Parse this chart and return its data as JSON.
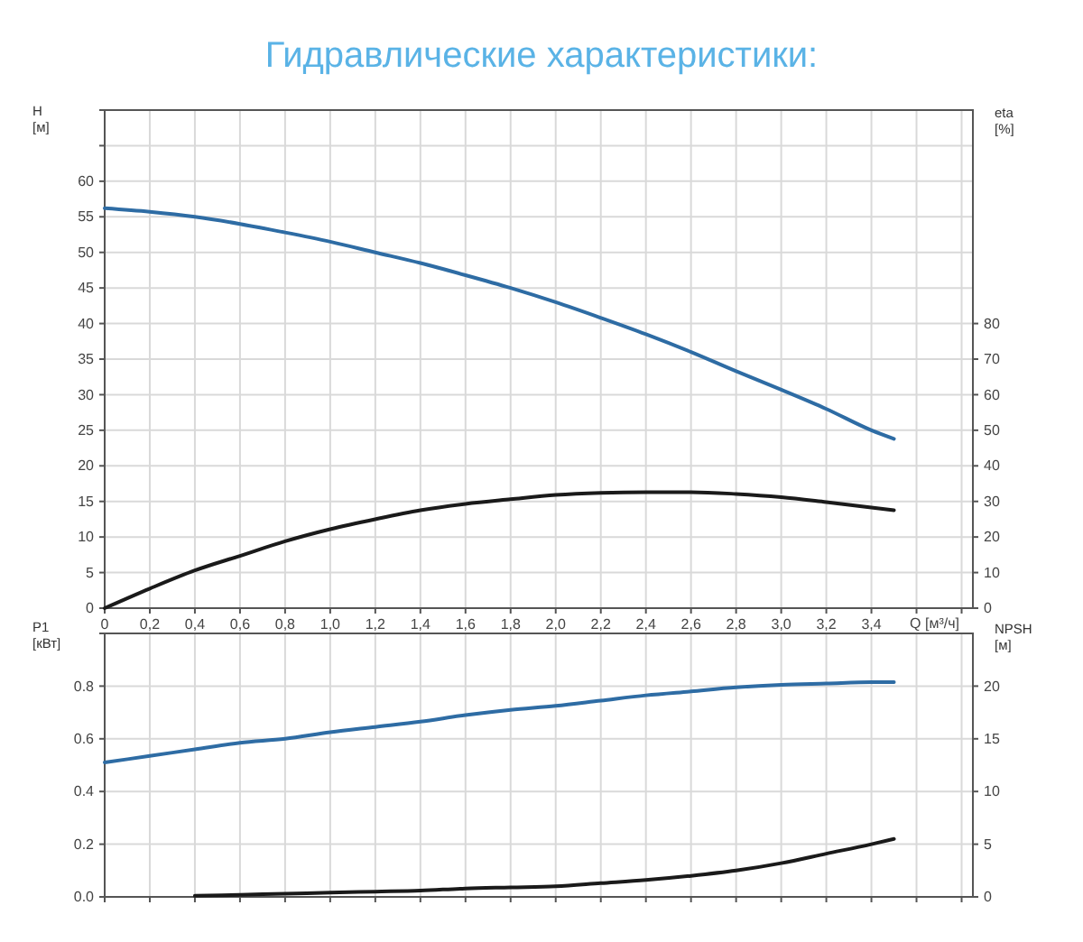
{
  "chart_data": [
    {
      "type": "line",
      "title": "Гидравлические характеристики:",
      "xlabel": "Q [м³/ч]",
      "ylabel": "H [м]",
      "y2label": "eta [%]",
      "grid": true,
      "xlim": [
        0,
        3.85
      ],
      "xticks": [
        0,
        {
          "value": 0.2,
          "label": "0,2"
        },
        {
          "value": 0.4,
          "label": "0,4"
        },
        {
          "value": 0.6,
          "label": "0,6"
        },
        {
          "value": 0.8,
          "label": "0,8"
        },
        {
          "value": 1.0,
          "label": "1,0"
        },
        {
          "value": 1.2,
          "label": "1,2"
        },
        {
          "value": 1.4,
          "label": "1,4"
        },
        {
          "value": 1.6,
          "label": "1,6"
        },
        {
          "value": 1.8,
          "label": "1,8"
        },
        {
          "value": 2.0,
          "label": "2,0"
        },
        {
          "value": 2.2,
          "label": "2,2"
        },
        {
          "value": 2.4,
          "label": "2,4"
        },
        {
          "value": 2.6,
          "label": "2,6"
        },
        {
          "value": 2.8,
          "label": "2,8"
        },
        {
          "value": 3.0,
          "label": "3,0"
        },
        {
          "value": 3.2,
          "label": "3,2"
        },
        {
          "value": 3.4,
          "label": "3,4"
        },
        {
          "value": 3.6,
          "label": null
        },
        {
          "value": 3.8,
          "label": null
        }
      ],
      "ylim": [
        0,
        70
      ],
      "yticks": [
        0,
        5,
        10,
        15,
        20,
        25,
        30,
        35,
        40,
        45,
        50,
        55,
        60,
        {
          "value": 65,
          "label": null
        },
        {
          "value": 70,
          "label": null
        }
      ],
      "y2lim": [
        0,
        140
      ],
      "y2ticks": [
        0,
        10,
        20,
        30,
        40,
        50,
        60,
        70,
        80
      ],
      "series": [
        {
          "color": "#2e6ca4",
          "x": [
            0,
            0.2,
            0.4,
            0.6,
            0.8,
            1.0,
            1.2,
            1.4,
            1.6,
            1.8,
            2.0,
            2.2,
            2.4,
            2.6,
            2.8,
            3.0,
            3.2,
            3.4,
            3.5
          ],
          "values": [
            56.2,
            55.7,
            55,
            54,
            52.8,
            51.5,
            50,
            48.5,
            46.8,
            45,
            43,
            40.8,
            38.5,
            36,
            33.3,
            30.7,
            28,
            25,
            23.8
          ]
        },
        {
          "color": "#1a1a1a",
          "axis": "y2",
          "x": [
            0,
            0.2,
            0.4,
            0.6,
            0.8,
            1.0,
            1.2,
            1.4,
            1.6,
            1.8,
            2.0,
            2.2,
            2.4,
            2.6,
            2.8,
            3.0,
            3.2,
            3.4,
            3.5
          ],
          "values": [
            0,
            5.5,
            10.6,
            14.7,
            18.8,
            22.2,
            25,
            27.5,
            29.3,
            30.6,
            31.8,
            32.4,
            32.6,
            32.6,
            32.1,
            31.2,
            29.8,
            28.3,
            27.5
          ]
        }
      ]
    },
    {
      "type": "line",
      "ylabel": "P1 [кВт]",
      "y2label": "NPSH [м]",
      "grid": true,
      "tick_labels": "y",
      "xlim": [
        0,
        3.85
      ],
      "xticks": [
        0,
        0.2,
        0.4,
        0.6,
        0.8,
        1.0,
        1.2,
        1.4,
        1.6,
        1.8,
        2.0,
        2.2,
        2.4,
        2.6,
        2.8,
        3.0,
        3.2,
        3.4,
        3.6,
        3.8
      ],
      "ylim": [
        0,
        1.0
      ],
      "yticks": [
        {
          "value": 0,
          "label": "0.0"
        },
        0.2,
        0.4,
        0.6,
        0.8,
        {
          "value": 1.0,
          "label": null
        }
      ],
      "y2lim": [
        0,
        25
      ],
      "y2ticks": [
        0,
        5,
        10,
        15,
        20
      ],
      "series": [
        {
          "color": "#2e6ca4",
          "x": [
            0,
            0.2,
            0.4,
            0.6,
            0.8,
            1.0,
            1.2,
            1.4,
            1.6,
            1.8,
            2.0,
            2.2,
            2.4,
            2.6,
            2.8,
            3.0,
            3.2,
            3.4,
            3.5
          ],
          "values": [
            0.51,
            0.535,
            0.56,
            0.585,
            0.6,
            0.625,
            0.645,
            0.665,
            0.69,
            0.71,
            0.725,
            0.745,
            0.765,
            0.78,
            0.795,
            0.805,
            0.81,
            0.815,
            0.815
          ]
        },
        {
          "color": "#1a1a1a",
          "axis": "y2",
          "x": [
            0.4,
            0.6,
            0.8,
            1.0,
            1.2,
            1.4,
            1.6,
            1.8,
            2.0,
            2.2,
            2.4,
            2.6,
            2.8,
            3.0,
            3.2,
            3.4,
            3.5
          ],
          "values": [
            0.1,
            0.2,
            0.3,
            0.4,
            0.5,
            0.6,
            0.8,
            0.9,
            1.0,
            1.3,
            1.6,
            2.0,
            2.5,
            3.2,
            4.1,
            5.0,
            5.5
          ]
        }
      ]
    }
  ]
}
